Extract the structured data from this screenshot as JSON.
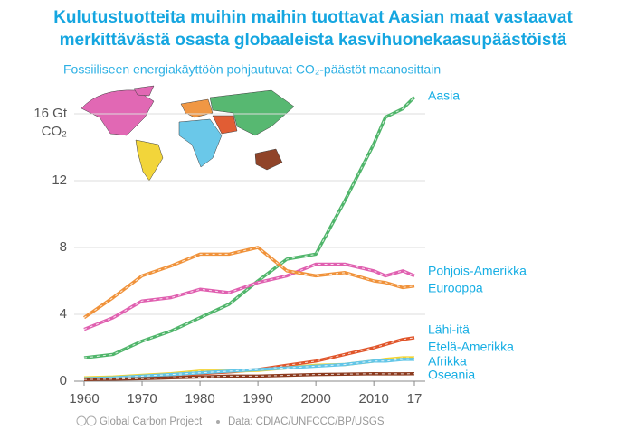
{
  "chart_data": {
    "type": "line",
    "title": [
      "Kulutustuotteita muihin maihin tuottavat Aasian maat vastaavat",
      "merkittävästä osasta globaaleista kasvihuonekaasupäästöistä"
    ],
    "subtitle": "Fossiiliseen energiakäyttöön pohjautuvat CO₂-päästöt maanosittain",
    "y_unit": "CO₂",
    "footer": [
      "Global Carbon Project",
      "Data: CDIAC/UNFCCC/BP/USGS"
    ],
    "x": [
      1960,
      1965,
      1970,
      1975,
      1980,
      1985,
      1990,
      1995,
      2000,
      2005,
      2010,
      2012,
      2015,
      2017
    ],
    "xlim": [
      1960,
      2017
    ],
    "xticks": [
      1960,
      1970,
      1980,
      1990,
      2000,
      2010,
      {
        "value": 2017,
        "label": "17"
      }
    ],
    "ylim": [
      0,
      17.5
    ],
    "yticks": [
      0,
      4,
      8,
      12,
      {
        "value": 16,
        "label": "16 Gt"
      }
    ],
    "grid": true,
    "series": [
      {
        "name": "Aasia",
        "color": "#4fb56a",
        "values": [
          1.4,
          1.6,
          2.4,
          3.0,
          3.8,
          4.6,
          6.0,
          7.3,
          7.6,
          10.8,
          14.2,
          15.8,
          16.3,
          17.0
        ]
      },
      {
        "name": "Pohjois-Amerikka",
        "color": "#e060b0",
        "values": [
          3.1,
          3.8,
          4.8,
          5.0,
          5.5,
          5.3,
          5.9,
          6.3,
          7.0,
          7.0,
          6.6,
          6.3,
          6.6,
          6.3
        ]
      },
      {
        "name": "Eurooppa",
        "color": "#f0923a",
        "values": [
          3.8,
          5.0,
          6.3,
          6.9,
          7.6,
          7.6,
          8.0,
          6.6,
          6.3,
          6.5,
          6.0,
          5.9,
          5.6,
          5.7
        ]
      },
      {
        "name": "Lähi-itä",
        "color": "#e0552a",
        "values": [
          0.1,
          0.15,
          0.2,
          0.3,
          0.45,
          0.55,
          0.7,
          0.95,
          1.2,
          1.6,
          2.0,
          2.2,
          2.5,
          2.6
        ]
      },
      {
        "name": "Etelä-Amerikka",
        "color": "#f2d330",
        "values": [
          0.2,
          0.25,
          0.35,
          0.45,
          0.6,
          0.6,
          0.65,
          0.8,
          0.95,
          1.0,
          1.2,
          1.3,
          1.4,
          1.4
        ]
      },
      {
        "name": "Afrikka",
        "color": "#63c6e8",
        "values": [
          0.15,
          0.2,
          0.3,
          0.4,
          0.5,
          0.6,
          0.7,
          0.8,
          0.9,
          1.0,
          1.2,
          1.2,
          1.3,
          1.3
        ]
      },
      {
        "name": "Oseania",
        "color": "#8b3a1e",
        "values": [
          0.1,
          0.12,
          0.15,
          0.2,
          0.25,
          0.3,
          0.3,
          0.35,
          0.4,
          0.42,
          0.45,
          0.44,
          0.44,
          0.45
        ]
      }
    ]
  }
}
